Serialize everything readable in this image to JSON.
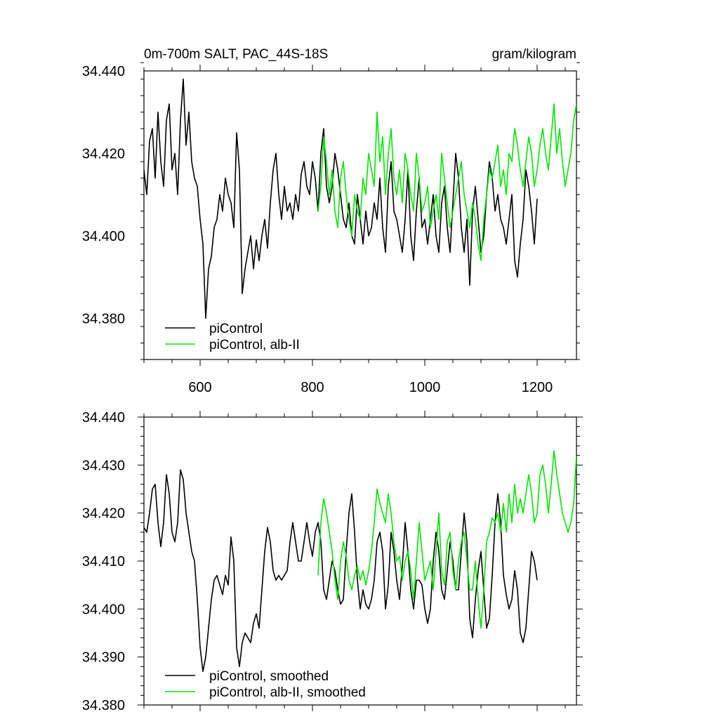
{
  "chart_data": [
    {
      "type": "line",
      "title": "0m-700m SALT, PAC_44S-18S",
      "units": "gram/kilogram",
      "xlim": [
        500,
        1270
      ],
      "ylim": [
        34.37,
        34.44
      ],
      "x_ticks": [
        600,
        800,
        1000,
        1200
      ],
      "x_tick_labels": [
        "600",
        "800",
        "1000",
        "1200"
      ],
      "y_ticks": [
        34.38,
        34.4,
        34.42,
        34.44
      ],
      "y_tick_labels": [
        "34.380",
        "34.400",
        "34.420",
        "34.440"
      ],
      "grid": false,
      "legend_position": "bottom-left",
      "series": [
        {
          "name": "piControl",
          "color": "#000000",
          "x": [
            500,
            505,
            510,
            515,
            520,
            525,
            530,
            535,
            540,
            545,
            550,
            555,
            560,
            565,
            570,
            575,
            580,
            585,
            590,
            595,
            600,
            605,
            610,
            615,
            620,
            625,
            630,
            635,
            640,
            645,
            650,
            655,
            660,
            665,
            670,
            675,
            680,
            685,
            690,
            695,
            700,
            705,
            710,
            715,
            720,
            725,
            730,
            735,
            740,
            745,
            750,
            755,
            760,
            765,
            770,
            775,
            780,
            785,
            790,
            795,
            800,
            805,
            810,
            815,
            820,
            825,
            830,
            835,
            840,
            845,
            850,
            855,
            860,
            865,
            870,
            875,
            880,
            885,
            890,
            895,
            900,
            905,
            910,
            915,
            920,
            925,
            930,
            935,
            940,
            945,
            950,
            955,
            960,
            965,
            970,
            975,
            980,
            985,
            990,
            995,
            1000,
            1005,
            1010,
            1015,
            1020,
            1025,
            1030,
            1035,
            1040,
            1045,
            1050,
            1055,
            1060,
            1065,
            1070,
            1075,
            1080,
            1085,
            1090,
            1095,
            1100,
            1105,
            1110,
            1115,
            1120,
            1125,
            1130,
            1135,
            1140,
            1145,
            1150,
            1155,
            1160,
            1165,
            1170,
            1175,
            1180,
            1185,
            1190,
            1195,
            1200
          ],
          "y": [
            34.416,
            34.41,
            34.423,
            34.426,
            34.414,
            34.43,
            34.418,
            34.412,
            34.428,
            34.432,
            34.416,
            34.42,
            34.41,
            34.428,
            34.438,
            34.422,
            34.43,
            34.418,
            34.414,
            34.412,
            34.404,
            34.398,
            34.38,
            34.392,
            34.395,
            34.402,
            34.404,
            34.41,
            34.406,
            34.414,
            34.41,
            34.408,
            34.402,
            34.425,
            34.416,
            34.386,
            34.392,
            34.396,
            34.4,
            34.392,
            34.399,
            34.394,
            34.4,
            34.404,
            34.397,
            34.408,
            34.416,
            34.42,
            34.41,
            34.404,
            34.412,
            34.406,
            34.408,
            34.404,
            34.41,
            34.406,
            34.415,
            34.418,
            34.412,
            34.41,
            34.418,
            34.414,
            34.406,
            34.42,
            34.426,
            34.412,
            34.408,
            34.412,
            34.42,
            34.416,
            34.41,
            34.404,
            34.402,
            34.408,
            34.4,
            34.398,
            34.41,
            34.404,
            34.398,
            34.406,
            34.4,
            34.402,
            34.408,
            34.404,
            34.414,
            34.402,
            34.396,
            34.412,
            34.418,
            34.406,
            34.404,
            34.4,
            34.396,
            34.404,
            34.416,
            34.4,
            34.394,
            34.406,
            34.414,
            34.402,
            34.404,
            34.398,
            34.404,
            34.41,
            34.4,
            34.396,
            34.408,
            34.412,
            34.402,
            34.396,
            34.408,
            34.42,
            34.414,
            34.402,
            34.396,
            34.404,
            34.388,
            34.406,
            34.412,
            34.404,
            34.396,
            34.4,
            34.41,
            34.418,
            34.414,
            34.406,
            34.41,
            34.404,
            34.402,
            34.398,
            34.404,
            34.41,
            34.394,
            34.39,
            34.398,
            34.404,
            34.416,
            34.412,
            34.406,
            34.398,
            34.409
          ]
        },
        {
          "name": "piControl, alb-II",
          "color": "#00e600",
          "x": [
            810,
            815,
            820,
            825,
            830,
            835,
            840,
            845,
            850,
            855,
            860,
            865,
            870,
            875,
            880,
            885,
            890,
            895,
            900,
            905,
            910,
            915,
            920,
            925,
            930,
            935,
            940,
            945,
            950,
            955,
            960,
            965,
            970,
            975,
            980,
            985,
            990,
            995,
            1000,
            1005,
            1010,
            1015,
            1020,
            1025,
            1030,
            1035,
            1040,
            1045,
            1050,
            1055,
            1060,
            1065,
            1070,
            1075,
            1080,
            1085,
            1090,
            1095,
            1100,
            1105,
            1110,
            1115,
            1120,
            1125,
            1130,
            1135,
            1140,
            1145,
            1150,
            1155,
            1160,
            1165,
            1170,
            1175,
            1180,
            1185,
            1190,
            1195,
            1200,
            1205,
            1210,
            1215,
            1220,
            1225,
            1230,
            1235,
            1240,
            1245,
            1250,
            1255,
            1260,
            1265,
            1270
          ],
          "y": [
            34.406,
            34.412,
            34.424,
            34.418,
            34.41,
            34.416,
            34.406,
            34.402,
            34.414,
            34.418,
            34.41,
            34.404,
            34.4,
            34.41,
            34.406,
            34.404,
            34.414,
            34.41,
            34.42,
            34.416,
            34.412,
            34.43,
            34.418,
            34.424,
            34.41,
            34.42,
            34.426,
            34.414,
            34.41,
            34.416,
            34.408,
            34.42,
            34.416,
            34.41,
            34.406,
            34.42,
            34.414,
            34.406,
            34.408,
            34.412,
            34.402,
            34.406,
            34.41,
            34.404,
            34.42,
            34.414,
            34.408,
            34.402,
            34.406,
            34.41,
            34.414,
            34.418,
            34.41,
            34.406,
            34.402,
            34.408,
            34.404,
            34.398,
            34.394,
            34.404,
            34.41,
            34.416,
            34.414,
            34.418,
            34.422,
            34.412,
            34.416,
            34.41,
            34.42,
            34.418,
            34.426,
            34.422,
            34.416,
            34.412,
            34.418,
            34.424,
            34.42,
            34.412,
            34.416,
            34.422,
            34.426,
            34.42,
            34.416,
            34.424,
            34.432,
            34.42,
            34.426,
            34.418,
            34.412,
            34.416,
            34.42,
            34.428,
            34.432
          ]
        }
      ]
    },
    {
      "type": "line",
      "xlim": [
        500,
        1270
      ],
      "ylim": [
        34.38,
        34.44
      ],
      "x_ticks": [
        600,
        800,
        1000,
        1200
      ],
      "y_ticks": [
        34.38,
        34.39,
        34.4,
        34.41,
        34.42,
        34.43,
        34.44
      ],
      "y_tick_labels": [
        "34.380",
        "34.390",
        "34.400",
        "34.410",
        "34.420",
        "34.430",
        "34.440"
      ],
      "grid": false,
      "legend_position": "bottom-left",
      "series": [
        {
          "name": "piControl, smoothed",
          "color": "#000000",
          "x": [
            500,
            505,
            510,
            515,
            520,
            525,
            530,
            535,
            540,
            545,
            550,
            555,
            560,
            565,
            570,
            575,
            580,
            585,
            590,
            595,
            600,
            605,
            610,
            615,
            620,
            625,
            630,
            635,
            640,
            645,
            650,
            655,
            660,
            665,
            670,
            675,
            680,
            685,
            690,
            695,
            700,
            705,
            710,
            715,
            720,
            725,
            730,
            735,
            740,
            745,
            750,
            755,
            760,
            765,
            770,
            775,
            780,
            785,
            790,
            795,
            800,
            805,
            810,
            815,
            820,
            825,
            830,
            835,
            840,
            845,
            850,
            855,
            860,
            865,
            870,
            875,
            880,
            885,
            890,
            895,
            900,
            905,
            910,
            915,
            920,
            925,
            930,
            935,
            940,
            945,
            950,
            955,
            960,
            965,
            970,
            975,
            980,
            985,
            990,
            995,
            1000,
            1005,
            1010,
            1015,
            1020,
            1025,
            1030,
            1035,
            1040,
            1045,
            1050,
            1055,
            1060,
            1065,
            1070,
            1075,
            1080,
            1085,
            1090,
            1095,
            1100,
            1105,
            1110,
            1115,
            1120,
            1125,
            1130,
            1135,
            1140,
            1145,
            1150,
            1155,
            1160,
            1165,
            1170,
            1175,
            1180,
            1185,
            1190,
            1195,
            1200
          ],
          "y": [
            34.417,
            34.416,
            34.42,
            34.425,
            34.426,
            34.418,
            34.413,
            34.418,
            34.428,
            34.424,
            34.416,
            34.414,
            34.418,
            34.429,
            34.427,
            34.42,
            34.416,
            34.412,
            34.41,
            34.402,
            34.392,
            34.387,
            34.39,
            34.396,
            34.402,
            34.406,
            34.407,
            34.405,
            34.403,
            34.407,
            34.405,
            34.415,
            34.41,
            34.392,
            34.388,
            34.393,
            34.395,
            34.394,
            34.393,
            34.397,
            34.399,
            34.396,
            34.404,
            34.412,
            34.417,
            34.414,
            34.408,
            34.406,
            34.407,
            34.406,
            34.407,
            34.408,
            34.414,
            34.418,
            34.414,
            34.41,
            34.41,
            34.414,
            34.418,
            34.414,
            34.411,
            34.416,
            34.418,
            34.414,
            34.404,
            34.402,
            34.406,
            34.41,
            34.408,
            34.404,
            34.401,
            34.402,
            34.412,
            34.42,
            34.424,
            34.416,
            34.406,
            34.4,
            34.404,
            34.401,
            34.4,
            34.402,
            34.406,
            34.414,
            34.416,
            34.412,
            34.4,
            34.405,
            34.416,
            34.412,
            34.406,
            34.402,
            34.409,
            34.418,
            34.412,
            34.404,
            34.4,
            34.406,
            34.406,
            34.405,
            34.4,
            34.397,
            34.4,
            34.41,
            34.416,
            34.412,
            34.404,
            34.402,
            34.408,
            34.414,
            34.41,
            34.404,
            34.404,
            34.412,
            34.42,
            34.414,
            34.398,
            34.394,
            34.402,
            34.408,
            34.412,
            34.404,
            34.396,
            34.398,
            34.407,
            34.418,
            34.424,
            34.418,
            34.407,
            34.403,
            34.4,
            34.402,
            34.408,
            34.404,
            34.395,
            34.393,
            34.396,
            34.404,
            34.412,
            34.41,
            34.406
          ]
        },
        {
          "name": "piControl, alb-II, smoothed",
          "color": "#00e600",
          "x": [
            810,
            815,
            820,
            825,
            830,
            835,
            840,
            845,
            850,
            855,
            860,
            865,
            870,
            875,
            880,
            885,
            890,
            895,
            900,
            905,
            910,
            915,
            920,
            925,
            930,
            935,
            940,
            945,
            950,
            955,
            960,
            965,
            970,
            975,
            980,
            985,
            990,
            995,
            1000,
            1005,
            1010,
            1015,
            1020,
            1025,
            1030,
            1035,
            1040,
            1045,
            1050,
            1055,
            1060,
            1065,
            1070,
            1075,
            1080,
            1085,
            1090,
            1095,
            1100,
            1105,
            1110,
            1115,
            1120,
            1125,
            1130,
            1135,
            1140,
            1145,
            1150,
            1155,
            1160,
            1165,
            1170,
            1175,
            1180,
            1185,
            1190,
            1195,
            1200,
            1205,
            1210,
            1215,
            1220,
            1225,
            1230,
            1235,
            1240,
            1245,
            1250,
            1255,
            1260,
            1265,
            1270
          ],
          "y": [
            34.407,
            34.418,
            34.423,
            34.42,
            34.416,
            34.412,
            34.406,
            34.402,
            34.41,
            34.414,
            34.411,
            34.406,
            34.404,
            34.407,
            34.409,
            34.406,
            34.408,
            34.405,
            34.408,
            34.412,
            34.418,
            34.425,
            34.422,
            34.42,
            34.418,
            34.424,
            34.42,
            34.414,
            34.41,
            34.411,
            34.406,
            34.41,
            34.412,
            34.408,
            34.402,
            34.41,
            34.418,
            34.412,
            34.406,
            34.408,
            34.41,
            34.404,
            34.412,
            34.42,
            34.408,
            34.405,
            34.414,
            34.416,
            34.408,
            34.404,
            34.41,
            34.414,
            34.416,
            34.41,
            34.404,
            34.404,
            34.41,
            34.402,
            34.396,
            34.404,
            34.414,
            34.416,
            34.419,
            34.418,
            34.42,
            34.416,
            34.422,
            34.416,
            34.424,
            34.418,
            34.426,
            34.42,
            34.423,
            34.42,
            34.424,
            34.428,
            34.424,
            34.418,
            34.42,
            34.428,
            34.43,
            34.426,
            34.42,
            34.426,
            34.433,
            34.428,
            34.424,
            34.42,
            34.418,
            34.416,
            34.418,
            34.422,
            34.432
          ]
        }
      ]
    }
  ]
}
